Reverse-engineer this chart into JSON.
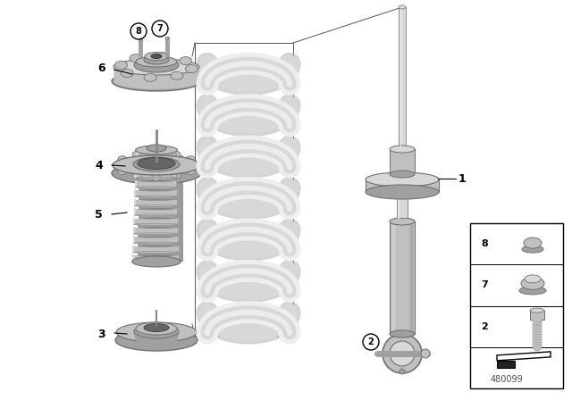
{
  "background_color": "#ffffff",
  "diagram_number": "480099",
  "colors": {
    "part_light": "#d8d8d8",
    "part_mid": "#c0c0c0",
    "part_dark": "#a0a0a0",
    "part_shadow": "#888888",
    "part_edge": "#707070",
    "spring_light": "#eeeeee",
    "spring_mid": "#d8d8d8",
    "spring_dark": "#b8b8b8",
    "line_color": "#000000",
    "text_color": "#000000"
  },
  "layout": {
    "fig_w": 6.4,
    "fig_h": 4.48,
    "dpi": 100,
    "xlim": [
      0,
      640
    ],
    "ylim": [
      0,
      448
    ]
  }
}
